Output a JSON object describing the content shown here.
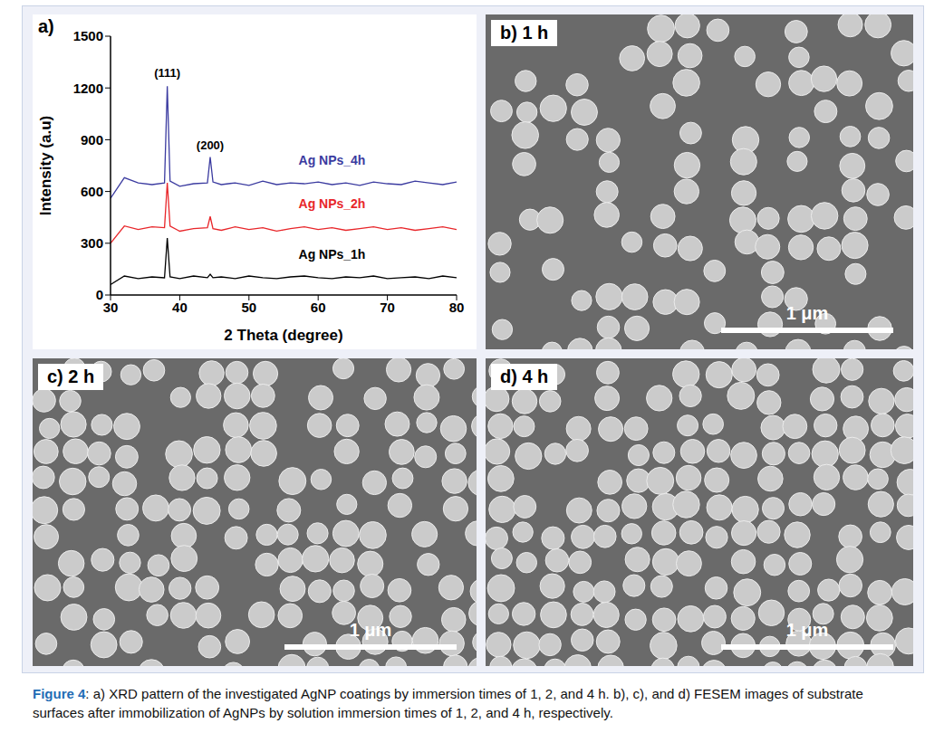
{
  "chart_data": {
    "type": "line",
    "panel_label": "a)",
    "x_label": "2 Theta (degree)",
    "y_label": "Intensity (a.u)",
    "xlim": [
      30,
      80
    ],
    "xticks": [
      30,
      40,
      50,
      60,
      70,
      80
    ],
    "ylim": [
      0,
      1500
    ],
    "yticks": [
      0,
      300,
      600,
      900,
      1200,
      1500
    ],
    "x": [
      30,
      32,
      34,
      36,
      37.8,
      38.2,
      38.6,
      40,
      42,
      44,
      44.4,
      44.8,
      46,
      48,
      50,
      52,
      54,
      56,
      58,
      60,
      62,
      64,
      66,
      68,
      70,
      72,
      74,
      76,
      78,
      80
    ],
    "series": [
      {
        "name": "Ag NPs_1h",
        "color": "#000000",
        "values": [
          60,
          110,
          95,
          105,
          100,
          330,
          105,
          95,
          110,
          100,
          120,
          100,
          105,
          95,
          110,
          100,
          95,
          105,
          110,
          100,
          95,
          105,
          100,
          110,
          95,
          100,
          105,
          95,
          110,
          100
        ]
      },
      {
        "name": "Ag NPs_2h",
        "color": "#e8262a",
        "values": [
          300,
          400,
          380,
          395,
          390,
          650,
          400,
          370,
          385,
          390,
          455,
          385,
          375,
          395,
          380,
          390,
          370,
          385,
          395,
          380,
          390,
          375,
          385,
          395,
          380,
          390,
          375,
          385,
          395,
          380
        ]
      },
      {
        "name": "Ag NPs_4h",
        "color": "#3b3ba0",
        "values": [
          560,
          680,
          650,
          640,
          650,
          1210,
          660,
          630,
          645,
          650,
          800,
          655,
          640,
          650,
          635,
          660,
          640,
          650,
          645,
          655,
          640,
          650,
          635,
          655,
          645,
          640,
          660,
          650,
          640,
          655
        ]
      }
    ],
    "annotations": [
      {
        "text": "(111)",
        "x": 38.2,
        "y": 1290
      },
      {
        "text": "(200)",
        "x": 44.4,
        "y": 870
      }
    ]
  },
  "images": [
    {
      "label": "b) 1 h",
      "scale_bar": "1 μm"
    },
    {
      "label": "c) 2 h",
      "scale_bar": "1 μm"
    },
    {
      "label": "d) 4 h",
      "scale_bar": "1 μm"
    }
  ],
  "caption": {
    "label": "Figure 4",
    "text": ": a) XRD pattern of the investigated AgNP coatings by immersion times of 1, 2, and 4 h.  b), c), and d) FESEM images of substrate surfaces after immobilization of AgNPs by solution immersion times of 1, 2, and 4 h, respectively."
  }
}
